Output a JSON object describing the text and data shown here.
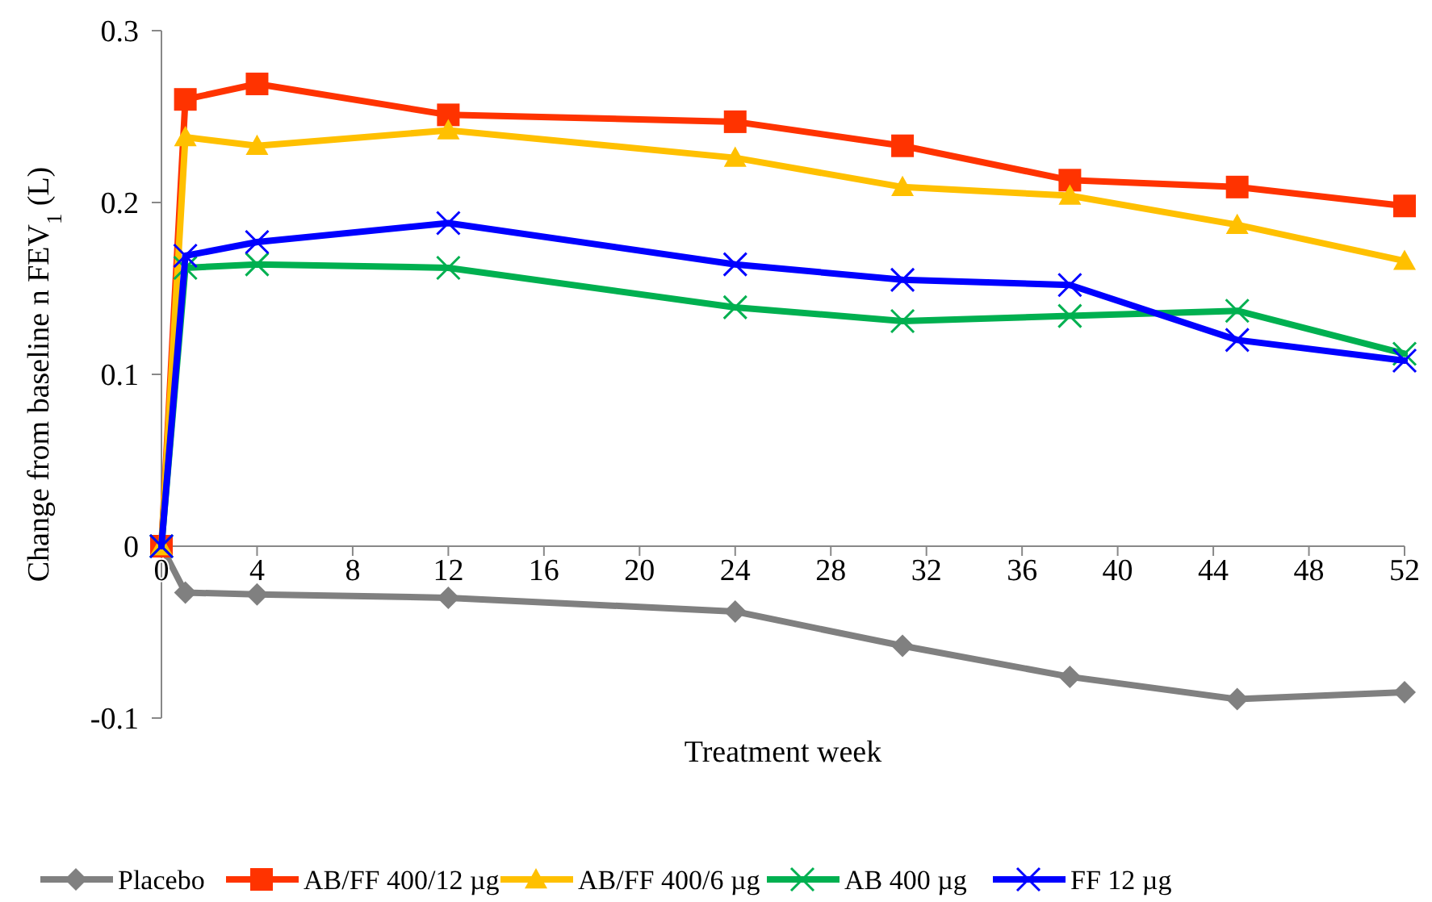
{
  "chart_data": {
    "type": "line",
    "xlabel": "Treatment week",
    "ylabel": "Change from baseline n FEV$_{1}$ (L)",
    "x": [
      0,
      1,
      4,
      12,
      24,
      31,
      38,
      45,
      52
    ],
    "xlim": [
      0,
      52
    ],
    "xticks": [
      0,
      4,
      8,
      12,
      16,
      20,
      24,
      28,
      32,
      36,
      40,
      44,
      48,
      52
    ],
    "ylim": [
      -0.1,
      0.3
    ],
    "yticks": [
      -0.1,
      0,
      0.1,
      0.2,
      0.3
    ],
    "grid": false,
    "legend": "bottom",
    "line_style": "solid",
    "series": [
      {
        "name": "Placebo",
        "color": "#808080",
        "marker": "diamond",
        "values": [
          0,
          -0.027,
          -0.028,
          -0.03,
          -0.038,
          -0.058,
          -0.076,
          -0.089,
          -0.085
        ]
      },
      {
        "name": "AB/FF 400/12 µg",
        "color": "#ff3300",
        "marker": "square",
        "values": [
          0,
          0.26,
          0.269,
          0.251,
          0.247,
          0.233,
          0.213,
          0.209,
          0.198
        ]
      },
      {
        "name": "AB/FF 400/6 µg",
        "color": "#ffc000",
        "marker": "triangle",
        "values": [
          0,
          0.238,
          0.233,
          0.242,
          0.226,
          0.209,
          0.204,
          0.187,
          0.166
        ]
      },
      {
        "name": "AB 400 µg",
        "color": "#00b050",
        "marker": "cross",
        "values": [
          0,
          0.162,
          0.164,
          0.162,
          0.139,
          0.131,
          0.134,
          0.137,
          0.112
        ]
      },
      {
        "name": "FF 12 µg",
        "color": "#0000ff",
        "marker": "cross",
        "values": [
          0,
          0.169,
          0.177,
          0.188,
          0.164,
          0.155,
          0.152,
          0.12,
          0.108
        ]
      }
    ]
  }
}
